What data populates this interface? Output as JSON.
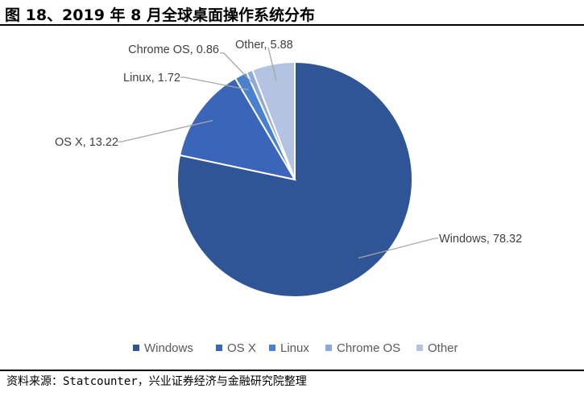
{
  "figure": {
    "title": "图 18、2019 年 8 月全球桌面操作系统分布",
    "source": "资料来源：Statcounter，兴业证券经济与金融研究院整理"
  },
  "chart_data": {
    "type": "pie",
    "title": "",
    "categories": [
      "Windows",
      "OS X",
      "Linux",
      "Chrome OS",
      "Other"
    ],
    "values": [
      78.32,
      13.22,
      1.72,
      0.86,
      5.88
    ],
    "data_labels": [
      "Windows, 78.32",
      "OS X, 13.22",
      "Linux, 1.72",
      "Chrome OS, 0.86",
      "Other, 5.88"
    ],
    "colors": [
      "#2F5597",
      "#3A65B8",
      "#4A80D0",
      "#8EA9DB",
      "#B4C3E2"
    ],
    "legend": {
      "position": "bottom",
      "entries": [
        "Windows",
        "OS X",
        "Linux",
        "Chrome OS",
        "Other"
      ]
    }
  }
}
